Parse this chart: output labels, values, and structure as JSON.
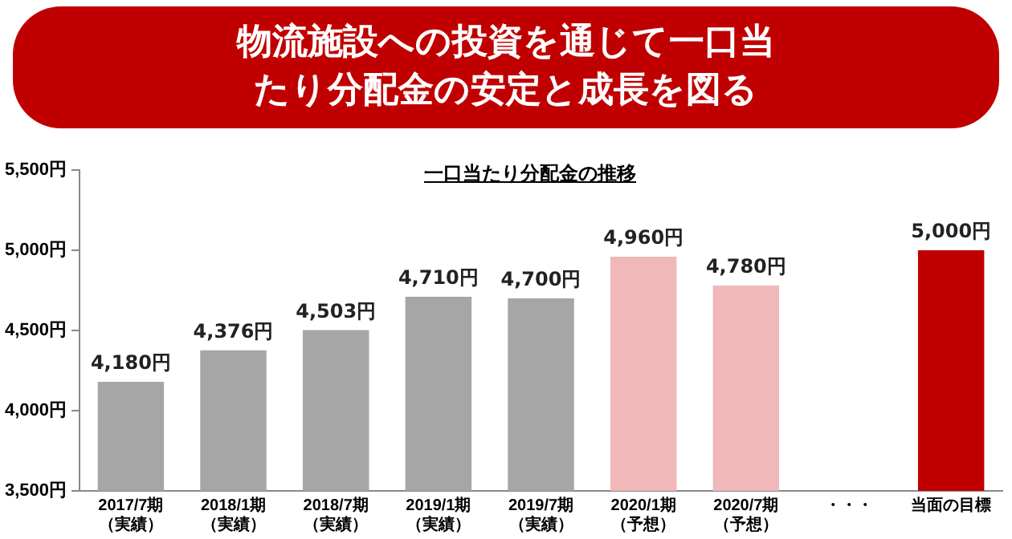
{
  "chart_data": {
    "type": "bar",
    "title": "物流施設への投資を通じて一口当たり分配金の安定と成長を図る",
    "subtitle": "一口当たり分配金の推移",
    "categories": [
      "2017/7期（実績）",
      "2018/1期（実績）",
      "2018/7期（実績）",
      "2019/1期（実績）",
      "2019/7期（実績）",
      "2020/1期（予想）",
      "2020/7期（予想）",
      "・・・",
      "当面の目標"
    ],
    "values": [
      4180,
      4376,
      4503,
      4710,
      4700,
      4960,
      4780,
      null,
      5000
    ],
    "colors": [
      "#a6a6a6",
      "#a6a6a6",
      "#a6a6a6",
      "#a6a6a6",
      "#a6a6a6",
      "#f0b8b8",
      "#f0b8b8",
      "#a6a6a6",
      "#c00000"
    ],
    "value_labels": [
      "4,180円",
      "4,376円",
      "4,503円",
      "4,710円",
      "4,700円",
      "4,960円",
      "4,780円",
      null,
      "5,000円"
    ],
    "ylim": [
      3500,
      5500
    ],
    "yticks": [
      {
        "value": 3500,
        "label": "3,500円"
      },
      {
        "value": 4000,
        "label": "4,000円"
      },
      {
        "value": 4500,
        "label": "4,500円"
      },
      {
        "value": 5000,
        "label": "5,000円"
      },
      {
        "value": 5500,
        "label": "5,500円"
      }
    ],
    "grid": false,
    "legend": false
  }
}
